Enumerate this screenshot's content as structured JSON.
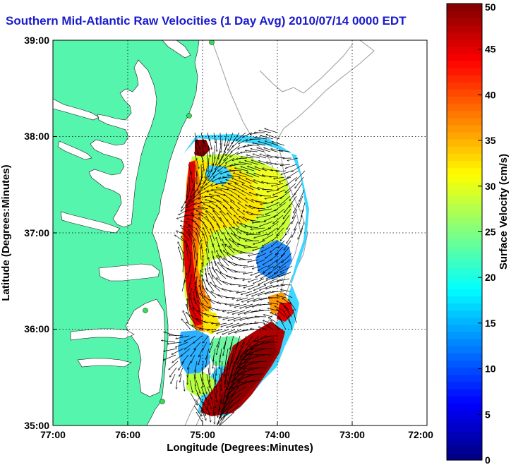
{
  "title": "Southern Mid-Atlantic Raw Velocities (1 Day Avg) 2010/07/14 0000 EDT",
  "map": {
    "xlabel": "Longitude (Degrees:Minutes)",
    "ylabel": "Latitude (Degrees:Minutes)",
    "x_ticks": [
      "77:00",
      "76:00",
      "75:00",
      "74:00",
      "73:00",
      "72:00"
    ],
    "y_ticks": [
      "39:00",
      "38:00",
      "37:00",
      "36:00",
      "35:00"
    ],
    "lon_range": [
      -77,
      -72
    ],
    "lat_range": [
      35,
      39
    ],
    "land_color": "#55f5ad",
    "contour_color": "#9a9a9a",
    "station_color": "#33dd55"
  },
  "colorbar": {
    "label": "Surface Velocity (cm/s)",
    "ticks": [
      "0",
      "5",
      "10",
      "15",
      "20",
      "25",
      "30",
      "35",
      "40",
      "45",
      "50"
    ],
    "min": 0,
    "max": 50,
    "colormap": "jet"
  }
}
